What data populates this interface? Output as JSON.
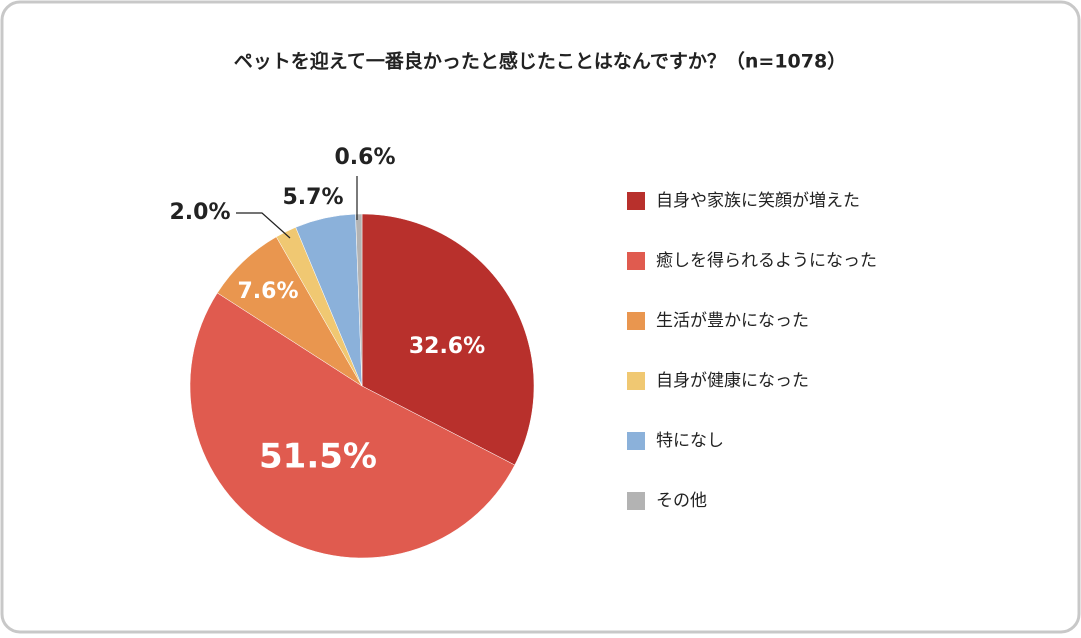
{
  "chart_data": {
    "type": "pie",
    "title": "ペットを迎えて一番良かったと感じたことはなんですか？（n=1078）",
    "categories": [
      "自身や家族に笑顔が増えた",
      "癒しを得られるようになった",
      "生活が豊かになった",
      "自身が健康になった",
      "特になし",
      "その他"
    ],
    "values": [
      32.6,
      51.5,
      7.6,
      2.0,
      5.7,
      0.6
    ],
    "value_labels": [
      "32.6%",
      "51.5%",
      "7.6%",
      "2.0%",
      "5.7%",
      "0.6%"
    ],
    "colors": [
      "#b8302c",
      "#e05b4f",
      "#e9964f",
      "#f0c872",
      "#8bb1da",
      "#b3b3b3"
    ],
    "legend": "right"
  }
}
